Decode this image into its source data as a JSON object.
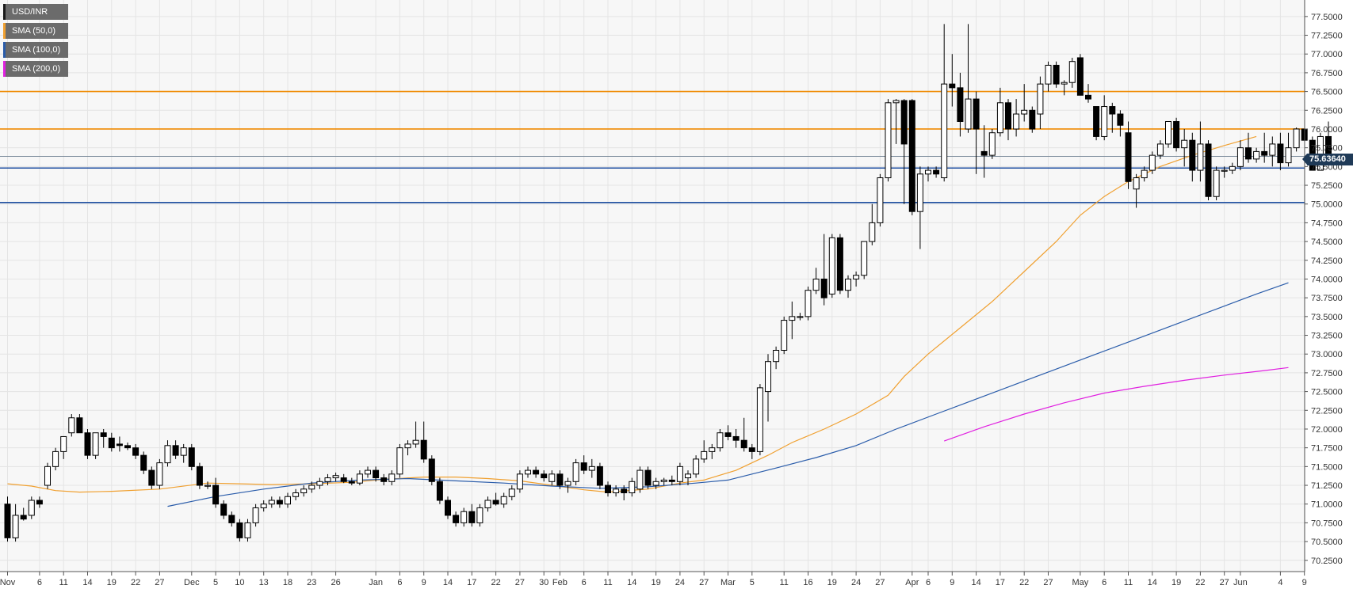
{
  "legend": [
    {
      "label": "USD/INR",
      "color": "#1a1a1a"
    },
    {
      "label": "SMA (50,0)",
      "color": "#f0a030"
    },
    {
      "label": "SMA (100,0)",
      "color": "#2a5caa"
    },
    {
      "label": "SMA (200,0)",
      "color": "#e020e0"
    }
  ],
  "last_price": "75.63640",
  "colors": {
    "background": "#f7f7f7",
    "grid": "#e4e4e4",
    "up_candle_fill": "#ffffff",
    "down_candle_fill": "#000000",
    "resistance": "#f08a00",
    "support": "#1f4fa0",
    "last_price_line": "#7a8a9a",
    "sma50": "#f0a030",
    "sma100": "#2a5caa",
    "sma200": "#e020e0"
  },
  "chart_data": {
    "type": "candlestick",
    "series": [
      {
        "name": "USD/INR"
      },
      {
        "name": "SMA (50,0)"
      },
      {
        "name": "SMA (100,0)"
      },
      {
        "name": "SMA (200,0)"
      }
    ],
    "ylim": [
      70.1,
      77.72
    ],
    "y_ticks": [
      "70.2500",
      "70.5000",
      "70.7500",
      "71.0000",
      "71.2500",
      "71.5000",
      "71.7500",
      "72.0000",
      "72.2500",
      "72.5000",
      "72.7500",
      "73.0000",
      "73.2500",
      "73.5000",
      "73.7500",
      "74.0000",
      "74.2500",
      "74.5000",
      "74.7500",
      "75.0000",
      "75.2500",
      "75.5000",
      "75.7500",
      "76.0000",
      "76.2500",
      "76.5000",
      "76.7500",
      "77.0000",
      "77.2500",
      "77.5000"
    ],
    "x_ticks": [
      "Nov",
      "6",
      "11",
      "14",
      "19",
      "22",
      "27",
      "Dec",
      "5",
      "10",
      "13",
      "18",
      "23",
      "26",
      "Jan",
      "6",
      "9",
      "14",
      "17",
      "22",
      "27",
      "30",
      "Feb",
      "6",
      "11",
      "14",
      "19",
      "24",
      "27",
      "Mar",
      "5",
      "11",
      "16",
      "19",
      "24",
      "27",
      "Apr",
      "6",
      "9",
      "14",
      "17",
      "22",
      "27",
      "May",
      "6",
      "11",
      "14",
      "19",
      "22",
      "27",
      "Jun",
      "4",
      "9"
    ],
    "x_tick_slots": [
      0,
      4,
      7,
      10,
      13,
      16,
      19,
      23,
      26,
      29,
      32,
      35,
      38,
      41,
      46,
      49,
      52,
      55,
      58,
      61,
      64,
      67,
      69,
      72,
      75,
      78,
      81,
      84,
      87,
      90,
      93,
      97,
      100,
      103,
      106,
      109,
      113,
      115,
      118,
      121,
      124,
      127,
      130,
      134,
      137,
      140,
      143,
      146,
      149,
      152,
      154,
      159,
      162
    ],
    "horizontal_levels": [
      {
        "value": 76.5,
        "kind": "resistance"
      },
      {
        "value": 76.0,
        "kind": "resistance"
      },
      {
        "value": 75.636,
        "kind": "last"
      },
      {
        "value": 75.48,
        "kind": "support"
      },
      {
        "value": 75.02,
        "kind": "support"
      }
    ],
    "ohlc": [
      [
        71.0,
        71.1,
        70.5,
        70.55
      ],
      [
        70.55,
        71.0,
        70.5,
        70.85
      ],
      [
        70.85,
        70.95,
        70.78,
        70.8
      ],
      [
        70.85,
        71.1,
        70.8,
        71.05
      ],
      [
        71.05,
        71.1,
        70.95,
        71.0
      ],
      [
        71.25,
        71.55,
        71.2,
        71.5
      ],
      [
        71.5,
        71.75,
        71.45,
        71.7
      ],
      [
        71.7,
        71.9,
        71.6,
        71.9
      ],
      [
        71.95,
        72.2,
        71.9,
        72.15
      ],
      [
        72.15,
        72.2,
        71.95,
        71.95
      ],
      [
        71.95,
        72.0,
        71.6,
        71.65
      ],
      [
        71.65,
        71.95,
        71.6,
        71.95
      ],
      [
        71.95,
        72.0,
        71.75,
        71.9
      ],
      [
        71.88,
        71.95,
        71.7,
        71.75
      ],
      [
        71.8,
        71.9,
        71.7,
        71.78
      ],
      [
        71.78,
        71.82,
        71.72,
        71.75
      ],
      [
        71.75,
        71.8,
        71.6,
        71.65
      ],
      [
        71.65,
        71.7,
        71.4,
        71.45
      ],
      [
        71.45,
        71.5,
        71.2,
        71.25
      ],
      [
        71.25,
        71.6,
        71.2,
        71.55
      ],
      [
        71.55,
        71.85,
        71.5,
        71.78
      ],
      [
        71.78,
        71.85,
        71.6,
        71.65
      ],
      [
        71.65,
        71.8,
        71.55,
        71.75
      ],
      [
        71.75,
        71.8,
        71.45,
        71.5
      ],
      [
        71.5,
        71.55,
        71.2,
        71.25
      ],
      [
        71.25,
        71.3,
        71.2,
        71.25
      ],
      [
        71.25,
        71.35,
        70.95,
        71.0
      ],
      [
        71.0,
        71.05,
        70.8,
        70.85
      ],
      [
        70.85,
        70.9,
        70.7,
        70.75
      ],
      [
        70.75,
        70.8,
        70.5,
        70.55
      ],
      [
        70.55,
        70.8,
        70.5,
        70.75
      ],
      [
        70.75,
        71.0,
        70.7,
        70.95
      ],
      [
        70.95,
        71.05,
        70.9,
        71.0
      ],
      [
        71.0,
        71.1,
        70.95,
        71.05
      ],
      [
        71.05,
        71.1,
        70.95,
        71.0
      ],
      [
        71.0,
        71.15,
        70.95,
        71.1
      ],
      [
        71.1,
        71.2,
        71.05,
        71.15
      ],
      [
        71.15,
        71.25,
        71.1,
        71.2
      ],
      [
        71.2,
        71.3,
        71.15,
        71.25
      ],
      [
        71.25,
        71.35,
        71.2,
        71.3
      ],
      [
        71.3,
        71.4,
        71.25,
        71.35
      ],
      [
        71.35,
        71.42,
        71.3,
        71.38
      ],
      [
        71.35,
        71.4,
        71.28,
        71.3
      ],
      [
        71.3,
        71.35,
        71.25,
        71.28
      ],
      [
        71.28,
        71.45,
        71.25,
        71.4
      ],
      [
        71.4,
        71.5,
        71.35,
        71.45
      ],
      [
        71.45,
        71.5,
        71.3,
        71.35
      ],
      [
        71.35,
        71.4,
        71.25,
        71.3
      ],
      [
        71.3,
        71.45,
        71.25,
        71.4
      ],
      [
        71.4,
        71.8,
        71.35,
        71.75
      ],
      [
        71.75,
        71.85,
        71.65,
        71.8
      ],
      [
        71.8,
        72.1,
        71.75,
        71.85
      ],
      [
        71.85,
        72.1,
        71.55,
        71.6
      ],
      [
        71.6,
        71.65,
        71.25,
        71.3
      ],
      [
        71.3,
        71.35,
        71.0,
        71.05
      ],
      [
        71.05,
        71.1,
        70.8,
        70.85
      ],
      [
        70.85,
        70.9,
        70.7,
        70.75
      ],
      [
        70.75,
        70.95,
        70.7,
        70.9
      ],
      [
        70.9,
        71.0,
        70.7,
        70.75
      ],
      [
        70.75,
        71.0,
        70.7,
        70.95
      ],
      [
        70.95,
        71.1,
        70.9,
        71.05
      ],
      [
        71.05,
        71.15,
        70.98,
        71.0
      ],
      [
        71.0,
        71.15,
        70.95,
        71.1
      ],
      [
        71.1,
        71.25,
        71.05,
        71.2
      ],
      [
        71.2,
        71.45,
        71.15,
        71.4
      ],
      [
        71.4,
        71.5,
        71.35,
        71.45
      ],
      [
        71.45,
        71.5,
        71.35,
        71.4
      ],
      [
        71.4,
        71.45,
        71.3,
        71.35
      ],
      [
        71.3,
        71.45,
        71.25,
        71.4
      ],
      [
        71.4,
        71.45,
        71.2,
        71.25
      ],
      [
        71.25,
        71.35,
        71.15,
        71.3
      ],
      [
        71.3,
        71.6,
        71.25,
        71.55
      ],
      [
        71.55,
        71.65,
        71.4,
        71.45
      ],
      [
        71.45,
        71.6,
        71.35,
        71.5
      ],
      [
        71.5,
        71.55,
        71.2,
        71.25
      ],
      [
        71.25,
        71.3,
        71.1,
        71.15
      ],
      [
        71.15,
        71.25,
        71.1,
        71.2
      ],
      [
        71.2,
        71.25,
        71.05,
        71.15
      ],
      [
        71.15,
        71.35,
        71.1,
        71.3
      ],
      [
        71.2,
        71.5,
        71.15,
        71.45
      ],
      [
        71.45,
        71.5,
        71.2,
        71.25
      ],
      [
        71.25,
        71.35,
        71.2,
        71.3
      ],
      [
        71.3,
        71.35,
        71.25,
        71.32
      ],
      [
        71.32,
        71.38,
        71.25,
        71.3
      ],
      [
        71.3,
        71.55,
        71.25,
        71.5
      ],
      [
        71.35,
        71.45,
        71.25,
        71.4
      ],
      [
        71.4,
        71.65,
        71.35,
        71.6
      ],
      [
        71.6,
        71.85,
        71.55,
        71.7
      ],
      [
        71.7,
        71.8,
        71.6,
        71.75
      ],
      [
        71.75,
        72.0,
        71.7,
        71.95
      ],
      [
        71.95,
        72.05,
        71.85,
        71.9
      ],
      [
        71.9,
        72.0,
        71.75,
        71.85
      ],
      [
        71.85,
        72.15,
        71.7,
        71.75
      ],
      [
        71.75,
        71.8,
        71.6,
        71.7
      ],
      [
        71.7,
        72.6,
        71.65,
        72.55
      ],
      [
        72.5,
        73.0,
        72.1,
        72.9
      ],
      [
        72.9,
        73.1,
        72.8,
        73.05
      ],
      [
        73.05,
        73.5,
        73.0,
        73.45
      ],
      [
        73.45,
        73.7,
        73.2,
        73.5
      ],
      [
        73.5,
        73.55,
        73.45,
        73.5
      ],
      [
        73.5,
        73.9,
        73.45,
        73.85
      ],
      [
        73.85,
        74.15,
        73.8,
        74.0
      ],
      [
        74.0,
        74.6,
        73.65,
        73.75
      ],
      [
        73.8,
        74.6,
        73.75,
        74.55
      ],
      [
        74.55,
        74.6,
        73.8,
        73.85
      ],
      [
        73.85,
        74.05,
        73.75,
        74.0
      ],
      [
        74.0,
        74.1,
        73.9,
        74.05
      ],
      [
        74.05,
        74.5,
        74.0,
        74.5
      ],
      [
        74.5,
        75.0,
        74.45,
        74.75
      ],
      [
        74.75,
        75.4,
        74.7,
        75.35
      ],
      [
        75.35,
        76.4,
        75.3,
        76.35
      ],
      [
        76.35,
        76.4,
        75.8,
        76.38
      ],
      [
        76.38,
        76.4,
        75.0,
        75.8
      ],
      [
        76.38,
        76.4,
        74.85,
        74.9
      ],
      [
        74.9,
        75.5,
        74.4,
        75.4
      ],
      [
        75.4,
        75.5,
        75.3,
        75.45
      ],
      [
        75.45,
        75.5,
        75.35,
        75.4
      ],
      [
        75.35,
        77.4,
        75.3,
        76.6
      ],
      [
        76.6,
        77.0,
        76.3,
        76.55
      ],
      [
        76.55,
        76.75,
        75.9,
        76.1
      ],
      [
        76.0,
        77.4,
        75.95,
        76.4
      ],
      [
        76.4,
        76.5,
        75.4,
        76.0
      ],
      [
        75.7,
        76.05,
        75.35,
        75.65
      ],
      [
        75.65,
        76.0,
        75.6,
        75.95
      ],
      [
        75.95,
        76.55,
        75.9,
        76.35
      ],
      [
        76.35,
        76.4,
        75.85,
        76.0
      ],
      [
        76.0,
        76.4,
        75.9,
        76.2
      ],
      [
        76.2,
        76.6,
        76.1,
        76.25
      ],
      [
        76.25,
        76.3,
        75.95,
        76.0
      ],
      [
        76.2,
        76.7,
        76.0,
        76.6
      ],
      [
        76.6,
        76.9,
        76.5,
        76.85
      ],
      [
        76.85,
        76.9,
        76.55,
        76.6
      ],
      [
        76.6,
        76.65,
        76.45,
        76.62
      ],
      [
        76.62,
        76.95,
        76.55,
        76.9
      ],
      [
        76.95,
        77.0,
        76.45,
        76.45
      ],
      [
        76.45,
        76.6,
        76.35,
        76.4
      ],
      [
        76.3,
        76.3,
        75.85,
        75.9
      ],
      [
        75.9,
        76.45,
        75.85,
        76.3
      ],
      [
        76.3,
        76.35,
        75.95,
        76.2
      ],
      [
        76.2,
        76.25,
        75.9,
        76.05
      ],
      [
        75.95,
        76.1,
        75.2,
        75.3
      ],
      [
        75.2,
        75.4,
        74.95,
        75.35
      ],
      [
        75.35,
        75.5,
        75.3,
        75.45
      ],
      [
        75.45,
        75.7,
        75.4,
        75.65
      ],
      [
        75.65,
        75.85,
        75.6,
        75.8
      ],
      [
        75.8,
        76.1,
        75.75,
        76.1
      ],
      [
        76.1,
        76.15,
        75.7,
        75.75
      ],
      [
        75.75,
        76.0,
        75.5,
        75.85
      ],
      [
        75.85,
        75.95,
        75.3,
        75.45
      ],
      [
        75.45,
        76.1,
        75.3,
        75.8
      ],
      [
        75.8,
        75.85,
        75.05,
        75.1
      ],
      [
        75.1,
        75.5,
        75.05,
        75.45
      ],
      [
        75.45,
        75.5,
        75.35,
        75.45
      ],
      [
        75.45,
        75.55,
        75.4,
        75.5
      ],
      [
        75.5,
        75.85,
        75.45,
        75.75
      ],
      [
        75.75,
        75.95,
        75.55,
        75.6
      ],
      [
        75.6,
        75.75,
        75.55,
        75.7
      ],
      [
        75.7,
        75.95,
        75.55,
        75.65
      ],
      [
        75.65,
        75.9,
        75.5,
        75.8
      ],
      [
        75.8,
        75.95,
        75.45,
        75.55
      ],
      [
        75.55,
        75.95,
        75.5,
        75.75
      ],
      [
        75.75,
        76.02,
        75.7,
        76.0
      ],
      [
        76.0,
        76.0,
        75.85,
        75.85
      ],
      [
        75.85,
        75.9,
        75.45,
        75.45
      ],
      [
        75.45,
        75.95,
        75.45,
        75.9
      ],
      [
        75.9,
        76.1,
        75.6,
        75.64
      ]
    ],
    "sma50": [
      [
        0,
        71.27
      ],
      [
        3,
        71.24
      ],
      [
        6,
        71.18
      ],
      [
        9,
        71.16
      ],
      [
        13,
        71.17
      ],
      [
        19,
        71.2
      ],
      [
        25,
        71.28
      ],
      [
        29,
        71.27
      ],
      [
        33,
        71.26
      ],
      [
        38,
        71.27
      ],
      [
        43,
        71.29
      ],
      [
        47,
        71.33
      ],
      [
        52,
        71.36
      ],
      [
        56,
        71.36
      ],
      [
        60,
        71.34
      ],
      [
        64,
        71.31
      ],
      [
        68,
        71.25
      ],
      [
        72,
        71.19
      ],
      [
        75,
        71.16
      ],
      [
        80,
        71.2
      ],
      [
        84,
        71.28
      ],
      [
        87,
        71.32
      ],
      [
        91,
        71.45
      ],
      [
        95,
        71.65
      ],
      [
        98,
        71.82
      ],
      [
        102,
        72.0
      ],
      [
        106,
        72.2
      ],
      [
        110,
        72.45
      ],
      [
        112,
        72.7
      ],
      [
        115,
        73.0
      ],
      [
        119,
        73.35
      ],
      [
        123,
        73.7
      ],
      [
        127,
        74.1
      ],
      [
        131,
        74.5
      ],
      [
        134,
        74.85
      ],
      [
        137,
        75.1
      ],
      [
        140,
        75.3
      ],
      [
        144,
        75.5
      ],
      [
        148,
        75.65
      ],
      [
        152,
        75.78
      ],
      [
        156,
        75.9
      ]
    ],
    "sma100": [
      [
        20,
        70.97
      ],
      [
        26,
        71.1
      ],
      [
        32,
        71.2
      ],
      [
        38,
        71.28
      ],
      [
        44,
        71.32
      ],
      [
        50,
        71.34
      ],
      [
        56,
        71.31
      ],
      [
        62,
        71.28
      ],
      [
        68,
        71.24
      ],
      [
        74,
        71.21
      ],
      [
        80,
        71.23
      ],
      [
        86,
        71.28
      ],
      [
        90,
        71.32
      ],
      [
        96,
        71.48
      ],
      [
        101,
        71.62
      ],
      [
        106,
        71.78
      ],
      [
        111,
        72.0
      ],
      [
        116,
        72.2
      ],
      [
        121,
        72.4
      ],
      [
        126,
        72.6
      ],
      [
        131,
        72.8
      ],
      [
        136,
        73.0
      ],
      [
        141,
        73.2
      ],
      [
        146,
        73.4
      ],
      [
        151,
        73.6
      ],
      [
        156,
        73.8
      ],
      [
        160,
        73.95
      ]
    ],
    "sma200": [
      [
        117,
        71.84
      ],
      [
        122,
        72.03
      ],
      [
        127,
        72.2
      ],
      [
        132,
        72.35
      ],
      [
        137,
        72.48
      ],
      [
        142,
        72.57
      ],
      [
        147,
        72.65
      ],
      [
        152,
        72.72
      ],
      [
        157,
        72.78
      ],
      [
        160,
        72.82
      ]
    ]
  }
}
